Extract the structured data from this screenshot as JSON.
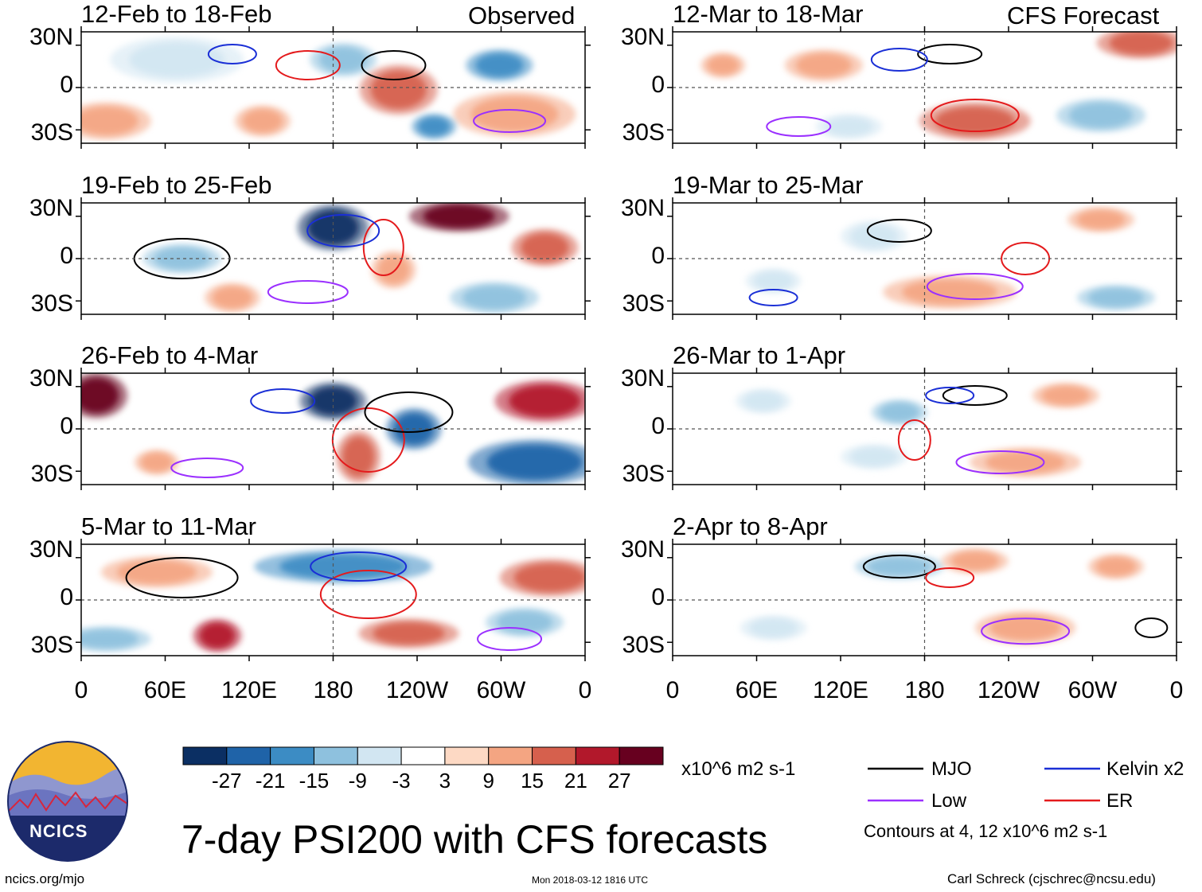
{
  "figure": {
    "title": "7-day PSI200 with CFS forecasts",
    "left_header": "Observed",
    "right_header": "CFS Forecast",
    "units": "x10^6 m2 s-1",
    "contours_note": "Contours at 4, 12 x10^6 m2 s-1",
    "logo_text": "NCICS",
    "site": "ncics.org/mjo",
    "timestamp": "Mon 2018-03-12 1816 UTC",
    "author": "Carl Schreck (cjschrec@ncsu.edu)"
  },
  "chart_data": {
    "type": "heatmap",
    "variable": "PSI200 anomaly",
    "title": "7-day PSI200 with CFS forecasts",
    "colorbar_ticks": [
      "-27",
      "-21",
      "-15",
      "-9",
      "-3",
      "3",
      "9",
      "15",
      "21",
      "27"
    ],
    "colorbar_colors": [
      "#0b2f63",
      "#1f63a8",
      "#3c8cc4",
      "#8ec1de",
      "#d2e6f2",
      "#ffffff",
      "#fdd9c4",
      "#f4a582",
      "#d6604d",
      "#b2182b",
      "#67001f"
    ],
    "legend": [
      {
        "name": "MJO",
        "color": "#000000"
      },
      {
        "name": "Kelvin x2",
        "color": "#1a2fd6"
      },
      {
        "name": "Low",
        "color": "#9b30ff"
      },
      {
        "name": "ER",
        "color": "#e41a1c"
      }
    ],
    "ylabels": [
      "30N",
      "0",
      "30S"
    ],
    "xlabels": [
      "0",
      "60E",
      "120E",
      "180",
      "120W",
      "60W",
      "0"
    ],
    "panels": [
      {
        "title": "12-Feb to 18-Feb",
        "source": "Observed"
      },
      {
        "title": "19-Feb to 25-Feb",
        "source": "Observed"
      },
      {
        "title": "26-Feb to 4-Mar",
        "source": "Observed"
      },
      {
        "title": "5-Mar to 11-Mar",
        "source": "Observed"
      },
      {
        "title": "12-Mar to 18-Mar",
        "source": "CFS Forecast"
      },
      {
        "title": "19-Mar to 25-Mar",
        "source": "CFS Forecast"
      },
      {
        "title": "26-Mar to 1-Apr",
        "source": "CFS Forecast"
      },
      {
        "title": "2-Apr to 8-Apr",
        "source": "CFS Forecast"
      }
    ]
  }
}
